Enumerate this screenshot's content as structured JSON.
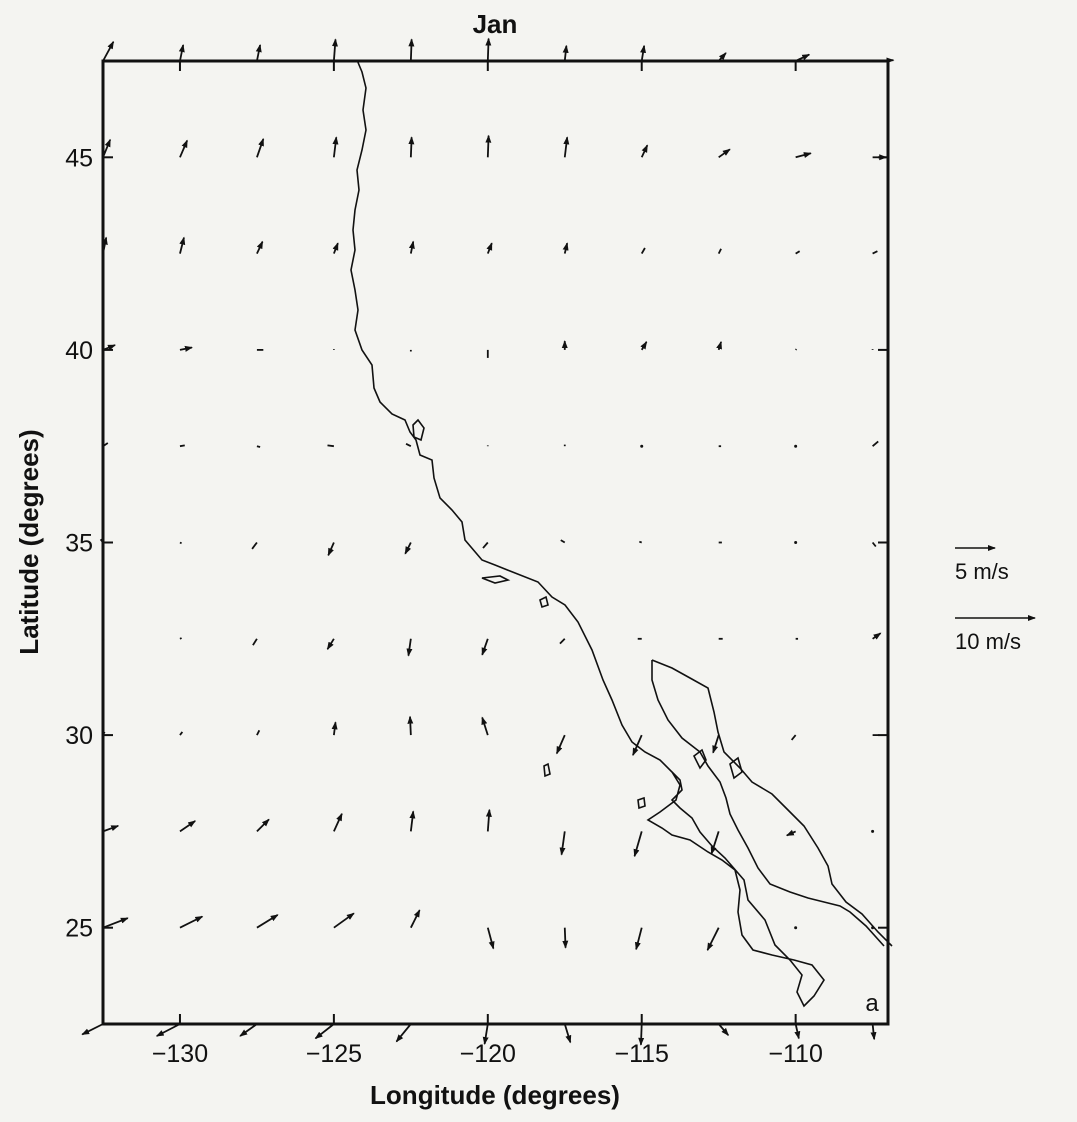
{
  "title": "Jan",
  "panel_label": "a",
  "xlabel": "Longitude (degrees)",
  "ylabel": "Latitude (degrees)",
  "x_ticks": [
    {
      "value": -130,
      "label": "−130"
    },
    {
      "value": -125,
      "label": "−125"
    },
    {
      "value": -120,
      "label": "−120"
    },
    {
      "value": -115,
      "label": "−115"
    },
    {
      "value": -110,
      "label": "−110"
    }
  ],
  "y_ticks": [
    {
      "value": 25,
      "label": "25"
    },
    {
      "value": 30,
      "label": "30"
    },
    {
      "value": 35,
      "label": "35"
    },
    {
      "value": 40,
      "label": "40"
    },
    {
      "value": 45,
      "label": "45"
    }
  ],
  "legend": [
    {
      "speed": 5,
      "label": "5 m/s"
    },
    {
      "speed": 10,
      "label": "10 m/s"
    }
  ],
  "chart_data": {
    "type": "vector-field",
    "title": "Jan",
    "xlabel": "Longitude (degrees)",
    "ylabel": "Latitude (degrees)",
    "xlim": [
      -132.5,
      -107
    ],
    "ylim": [
      22.5,
      47.5
    ],
    "units": "m/s",
    "grid_lon": [
      -132.5,
      -130,
      -127.5,
      -125,
      -122.5,
      -120,
      -117.5,
      -115,
      -112.5,
      -110,
      -107.5
    ],
    "grid_lat": [
      22.5,
      25,
      27.5,
      30,
      32.5,
      35,
      37.5,
      40,
      42.5,
      45,
      47.5
    ],
    "u_rows": [
      [
        -2.6,
        -2.9,
        -2.1,
        -2.3,
        -1.8,
        -0.4,
        0.7,
        -0.1,
        1.2,
        0.4,
        0.2
      ],
      [
        3.1,
        2.8,
        2.6,
        2.5,
        1.1,
        0.7,
        0.1,
        -0.7,
        -1.4,
        0,
        0
      ],
      [
        1.9,
        1.9,
        1.5,
        1,
        0.3,
        0.2,
        -0.4,
        -0.9,
        -0.9,
        -1.1,
        0
      ],
      [
        0.2,
        0.3,
        0.3,
        0.2,
        -0.1,
        -0.7,
        -1,
        -1.1,
        -0.7,
        -0.5,
        0.7
      ],
      [
        0.1,
        0.2,
        -0.5,
        -0.8,
        -0.3,
        -0.7,
        -0.6,
        -0.5,
        0.5,
        0.3,
        1
      ],
      [
        -0.3,
        0.2,
        -0.6,
        -0.7,
        -0.7,
        -0.6,
        -0.5,
        -0.3,
        0.4,
        0,
        0.4
      ],
      [
        0.6,
        0.6,
        0.4,
        -0.8,
        -0.6,
        0,
        0,
        0,
        0.3,
        0,
        0.7
      ],
      [
        1.5,
        1.5,
        0.8,
        0,
        0,
        0,
        0,
        0.6,
        0.3,
        0.1,
        0
      ],
      [
        0.4,
        0.5,
        0.7,
        0.5,
        0.3,
        0.5,
        0.3,
        0.4,
        0.3,
        0.5,
        0.6
      ],
      [
        0.9,
        0.9,
        0.8,
        0.3,
        0.1,
        0.1,
        0.3,
        0.7,
        1.4,
        1.9,
        1.7
      ],
      [
        1.3,
        0.4,
        0.4,
        0.2,
        0.1,
        0.1,
        0.2,
        0.3,
        0.9,
        1.7,
        2.6
      ]
    ],
    "v_rows": [
      [
        -1.3,
        -1.5,
        -1.5,
        -1.8,
        -2.2,
        -2.5,
        -2.3,
        -2.6,
        -1.4,
        -1.8,
        -1.9
      ],
      [
        1.2,
        1.4,
        1.6,
        1.8,
        2.2,
        -2.6,
        -2.5,
        -2.7,
        -2.8,
        0,
        0
      ],
      [
        0.7,
        1.3,
        1.5,
        2.2,
        2.5,
        2.7,
        -2.9,
        -3.1,
        -2.8,
        -0.5,
        0
      ],
      [
        0.4,
        0.4,
        0.6,
        1.6,
        2.3,
        2.2,
        -2.3,
        -2.5,
        -2.2,
        -0.6,
        0
      ],
      [
        -0.2,
        0.1,
        -0.8,
        -1.3,
        -2.1,
        -2,
        -0.6,
        0,
        0,
        0,
        0.7
      ],
      [
        0.4,
        -0.1,
        -0.8,
        -1.6,
        -1.4,
        -0.7,
        0.3,
        0.1,
        0,
        0,
        -0.5
      ],
      [
        0.4,
        0.1,
        -0.1,
        0.1,
        0.3,
        0.1,
        0.2,
        0,
        0,
        0,
        0.6
      ],
      [
        0.6,
        0.3,
        0,
        0.1,
        -0.2,
        -1,
        1.1,
        1,
        1,
        0.1,
        0.1
      ],
      [
        2,
        2,
        1.5,
        1.3,
        1.5,
        1.3,
        1.3,
        0.7,
        0.6,
        0.3,
        0.3
      ],
      [
        2.2,
        2.1,
        2.3,
        2.5,
        2.5,
        2.7,
        2.5,
        1.5,
        1,
        0.5,
        0
      ],
      [
        2.4,
        2,
        2,
        2.7,
        2.7,
        2.8,
        1.9,
        1.9,
        1,
        0.8,
        0.1
      ]
    ]
  }
}
